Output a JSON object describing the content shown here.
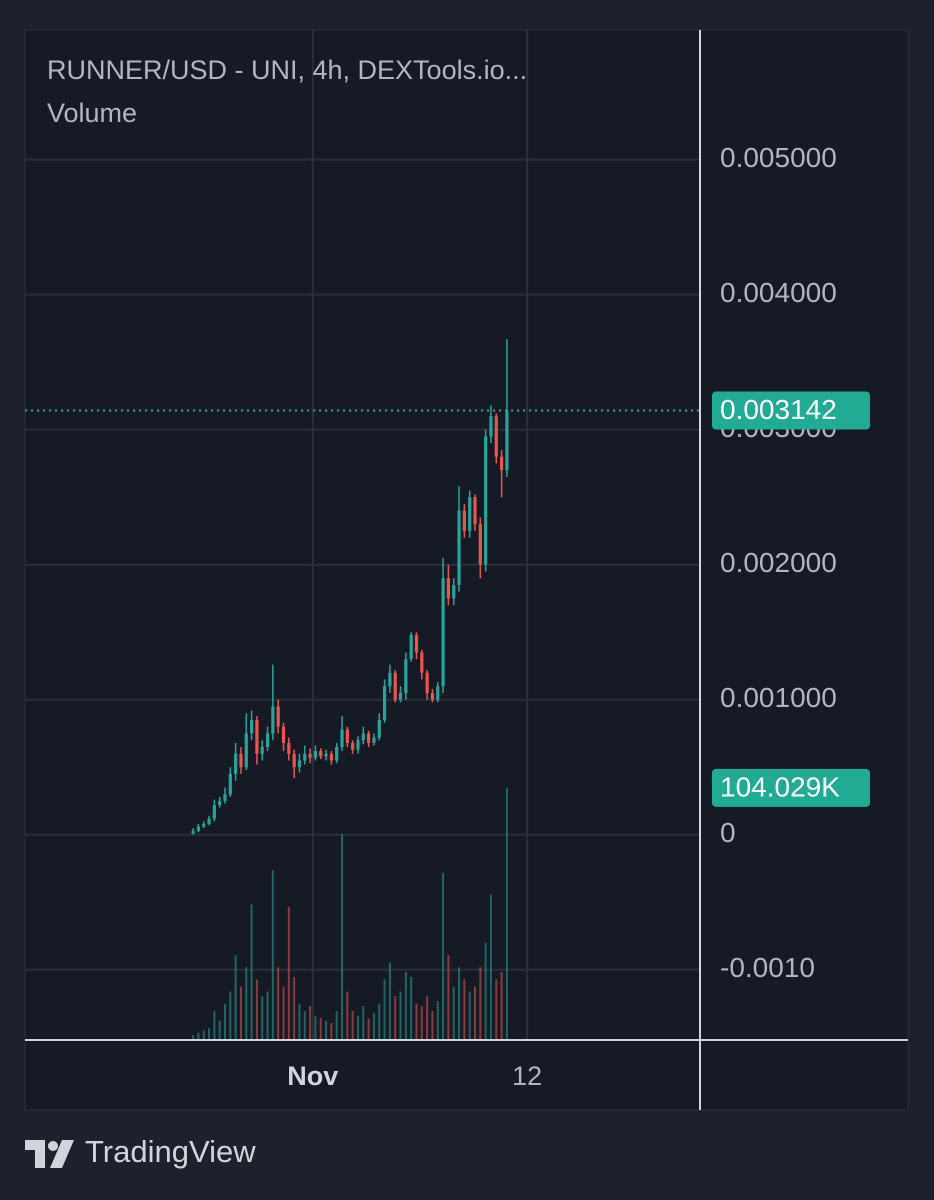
{
  "chart_data": {
    "type": "candlestick",
    "title": "RUNNER/USD - UNI, 4h, DEXTools.io...",
    "volume_legend": "Volume",
    "up_color": "#26a69a",
    "down_color": "#ef5350",
    "open": [
      1e-05,
      3e-05,
      6e-05,
      8e-05,
      0.00012,
      0.00022,
      0.00025,
      0.0003,
      0.00045,
      0.0006,
      0.0005,
      0.00075,
      0.00085,
      0.0006,
      0.00065,
      0.00075,
      0.00095,
      0.0008,
      0.00068,
      0.0006,
      0.0005,
      0.00055,
      0.0006,
      0.00057,
      0.00062,
      0.00058,
      0.0006,
      0.00055,
      0.00065,
      0.00078,
      0.00068,
      0.00063,
      0.0007,
      0.00075,
      0.00068,
      0.00072,
      0.00085,
      0.0011,
      0.0012,
      0.001,
      0.00105,
      0.0013,
      0.00148,
      0.00135,
      0.0012,
      0.00105,
      0.001,
      0.0011,
      0.0019,
      0.00175,
      0.00185,
      0.0024,
      0.00225,
      0.0025,
      0.0023,
      0.002,
      0.00295,
      0.0031,
      0.0028,
      0.0027
    ],
    "high": [
      5e-05,
      8e-05,
      0.0001,
      0.00014,
      0.00026,
      0.00028,
      0.00035,
      0.0005,
      0.00068,
      0.00065,
      0.0009,
      0.00092,
      0.00088,
      0.0007,
      0.0008,
      0.00126,
      0.001,
      0.00083,
      0.00072,
      0.00063,
      0.0006,
      0.00066,
      0.00064,
      0.00066,
      0.00064,
      0.00063,
      0.00062,
      0.00068,
      0.00088,
      0.0008,
      0.0007,
      0.00073,
      0.0008,
      0.00077,
      0.00075,
      0.0009,
      0.00115,
      0.00126,
      0.00122,
      0.0011,
      0.00135,
      0.0015,
      0.0015,
      0.00137,
      0.00122,
      0.00108,
      0.00113,
      0.00205,
      0.002,
      0.0019,
      0.00258,
      0.00245,
      0.00255,
      0.00252,
      0.00235,
      0.003,
      0.00318,
      0.00312,
      0.00285,
      0.00367
    ],
    "low": [
      0,
      2e-05,
      5e-05,
      7e-05,
      0.0001,
      0.0002,
      0.00023,
      0.00028,
      0.0004,
      0.00045,
      0.00048,
      0.0007,
      0.00052,
      0.00055,
      0.00062,
      0.0007,
      0.00075,
      0.00062,
      0.00055,
      0.00042,
      0.00046,
      0.00052,
      0.00053,
      0.00055,
      0.00056,
      0.00055,
      0.00052,
      0.00053,
      0.00062,
      0.00065,
      0.0006,
      0.0006,
      0.00067,
      0.00065,
      0.00066,
      0.0007,
      0.00083,
      0.00105,
      0.00098,
      0.00098,
      0.001,
      0.00128,
      0.0013,
      0.00115,
      0.001,
      0.00098,
      0.00098,
      0.00105,
      0.0017,
      0.0017,
      0.0018,
      0.0022,
      0.0022,
      0.00225,
      0.0019,
      0.00195,
      0.0029,
      0.00275,
      0.0025,
      0.00265
    ],
    "close": [
      3e-05,
      6e-05,
      8e-05,
      0.00012,
      0.00022,
      0.00025,
      0.0003,
      0.00045,
      0.0006,
      0.0005,
      0.00075,
      0.00085,
      0.0006,
      0.00065,
      0.00075,
      0.00095,
      0.0008,
      0.00068,
      0.0006,
      0.0005,
      0.00055,
      0.0006,
      0.00057,
      0.00062,
      0.00058,
      0.0006,
      0.00055,
      0.00065,
      0.00078,
      0.00068,
      0.00063,
      0.0007,
      0.00075,
      0.00068,
      0.00072,
      0.00085,
      0.0011,
      0.0012,
      0.001,
      0.00105,
      0.0013,
      0.00148,
      0.00135,
      0.0012,
      0.00105,
      0.001,
      0.0011,
      0.0019,
      0.00175,
      0.00185,
      0.0024,
      0.00225,
      0.0025,
      0.0023,
      0.002,
      0.00295,
      0.0031,
      0.0028,
      0.0027,
      0.003142
    ],
    "volumes": [
      2000,
      3000,
      4000,
      5000,
      12000,
      8000,
      15000,
      20000,
      35000,
      22000,
      30000,
      56000,
      25000,
      18000,
      20000,
      70000,
      30000,
      22000,
      55000,
      26000,
      15000,
      12000,
      14000,
      10000,
      9000,
      8000,
      7000,
      12000,
      85000,
      20000,
      12000,
      10000,
      14000,
      9000,
      11000,
      15000,
      25000,
      32000,
      18000,
      20000,
      28000,
      26000,
      15000,
      14000,
      18000,
      12000,
      16000,
      69000,
      35000,
      22000,
      30000,
      25000,
      20000,
      22000,
      30000,
      40000,
      60000,
      25000,
      28000,
      104029
    ],
    "last_price": 0.003142,
    "last_volume": {
      "value": 104029,
      "label": "104.029K"
    },
    "xlim": [
      -31.6,
      95.3
    ],
    "xticks": [
      {
        "value": 22.5,
        "label": "Nov"
      },
      {
        "value": 62.8,
        "label": "12"
      }
    ],
    "ylim": [
      -0.00152,
      0.00596
    ],
    "yticks": [
      {
        "value": 0.005,
        "label": "0.005000"
      },
      {
        "value": 0.004,
        "label": "0.004000"
      },
      {
        "value": 0.003,
        "label": "0.003000"
      },
      {
        "value": 0.002,
        "label": "0.002000"
      },
      {
        "value": 0.001,
        "label": "0.001000"
      },
      0,
      {
        "value": -0.001,
        "label": "-0.0010"
      }
    ],
    "volume_ylim": [
      0,
      170000
    ],
    "grid": true
  },
  "footer": {
    "brand": "TradingView"
  }
}
